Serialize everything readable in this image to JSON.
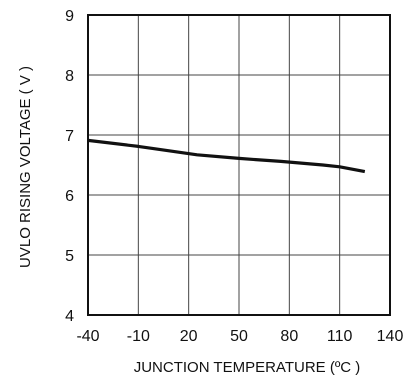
{
  "chart_data": {
    "type": "line",
    "xlabel": "JUNCTION TEMPERATURE (ºC )",
    "ylabel": "UVLO RISING VOLTAGE ( V )",
    "xlim": [
      -40,
      140
    ],
    "ylim": [
      4,
      9
    ],
    "x_ticks": [
      -40,
      -10,
      20,
      50,
      80,
      110,
      140
    ],
    "x_tick_labels": [
      "-40",
      "-10",
      "20",
      "50",
      "80",
      "110",
      "140"
    ],
    "y_ticks": [
      4,
      5,
      6,
      7,
      8,
      9
    ],
    "y_tick_labels": [
      "4",
      "5",
      "6",
      "7",
      "8",
      "9"
    ],
    "grid": true,
    "series": [
      {
        "x": [
          -40,
          -10,
          0,
          25,
          50,
          75,
          100,
          110,
          125
        ],
        "y": [
          6.91,
          6.81,
          6.77,
          6.67,
          6.61,
          6.56,
          6.5,
          6.47,
          6.39
        ]
      }
    ],
    "line_color": "#111111"
  }
}
